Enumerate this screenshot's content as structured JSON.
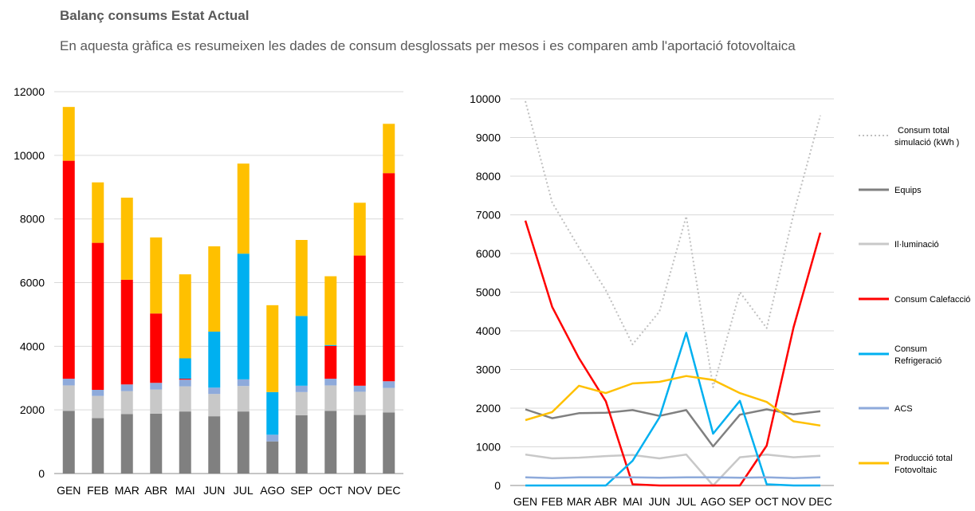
{
  "header": {
    "title": "Balanç consums Estat Actual",
    "subtitle": "En aquesta gràfica es resumeixen les dades de consum desglossats per mesos i es comparen amb l'aportació fotovoltaica"
  },
  "chart_data": [
    {
      "type": "bar",
      "stacked": true,
      "categories": [
        "GEN",
        "FEB",
        "MAR",
        "ABR",
        "MAI",
        "JUN",
        "JUL",
        "AGO",
        "SEP",
        "OCT",
        "NOV",
        "DEC"
      ],
      "ylim": [
        0,
        12000
      ],
      "yticks": [
        0,
        2000,
        4000,
        6000,
        8000,
        10000,
        12000
      ],
      "grid": true,
      "series": [
        {
          "color": "#808080",
          "values": [
            1970,
            1740,
            1870,
            1880,
            1950,
            1800,
            1950,
            1010,
            1830,
            1970,
            1840,
            1920
          ]
        },
        {
          "color": "#c8c8c8",
          "values": [
            800,
            700,
            720,
            760,
            790,
            700,
            800,
            0,
            730,
            800,
            730,
            770
          ]
        },
        {
          "color": "#8eaadb",
          "values": [
            210,
            190,
            210,
            210,
            210,
            200,
            210,
            210,
            200,
            210,
            190,
            210
          ]
        },
        {
          "color": "#ff0000",
          "values": [
            6850,
            4620,
            3290,
            2180,
            30,
            0,
            0,
            0,
            0,
            1030,
            4090,
            6540
          ]
        },
        {
          "color": "#00b0f0",
          "values": [
            0,
            0,
            0,
            0,
            640,
            1760,
            3950,
            1340,
            2190,
            30,
            0,
            0
          ]
        },
        {
          "color": "#ffc000",
          "values": [
            1690,
            1900,
            2580,
            2390,
            2640,
            2680,
            2830,
            2730,
            2390,
            2160,
            1660,
            1550
          ]
        }
      ]
    },
    {
      "type": "line",
      "categories": [
        "GEN",
        "FEB",
        "MAR",
        "ABR",
        "MAI",
        "JUN",
        "JUL",
        "AGO",
        "SEP",
        "OCT",
        "NOV",
        "DEC"
      ],
      "ylim": [
        0,
        10000
      ],
      "yticks": [
        0,
        1000,
        2000,
        3000,
        4000,
        5000,
        6000,
        7000,
        8000,
        9000,
        10000
      ],
      "grid": true,
      "legend_position": "right",
      "series": [
        {
          "name": "Consum total simulació (kWh )",
          "color": "#bfbfbf",
          "dashed": true,
          "values": [
            9940,
            7320,
            6150,
            5050,
            3650,
            4500,
            6960,
            2540,
            5000,
            4070,
            7020,
            9570
          ]
        },
        {
          "name": "Equips",
          "color": "#808080",
          "values": [
            1970,
            1740,
            1870,
            1880,
            1950,
            1800,
            1950,
            1010,
            1830,
            1970,
            1840,
            1920
          ]
        },
        {
          "name": "Il·luminació",
          "color": "#c8c8c8",
          "values": [
            800,
            700,
            720,
            760,
            790,
            700,
            800,
            0,
            730,
            800,
            730,
            770
          ]
        },
        {
          "name": "Consum Calefacció",
          "color": "#ff0000",
          "values": [
            6850,
            4620,
            3290,
            2180,
            30,
            0,
            0,
            0,
            0,
            1030,
            4090,
            6540
          ]
        },
        {
          "name": "Consum Refrigeració",
          "color": "#00b0f0",
          "values": [
            0,
            0,
            0,
            0,
            640,
            1760,
            3950,
            1340,
            2190,
            30,
            0,
            0
          ]
        },
        {
          "name": "ACS",
          "color": "#8eaadb",
          "values": [
            210,
            190,
            210,
            210,
            210,
            200,
            210,
            210,
            200,
            210,
            190,
            210
          ]
        },
        {
          "name": "Producció total Fotovoltaic",
          "color": "#ffc000",
          "values": [
            1690,
            1900,
            2580,
            2390,
            2640,
            2680,
            2830,
            2730,
            2390,
            2160,
            1660,
            1550
          ]
        }
      ]
    }
  ]
}
